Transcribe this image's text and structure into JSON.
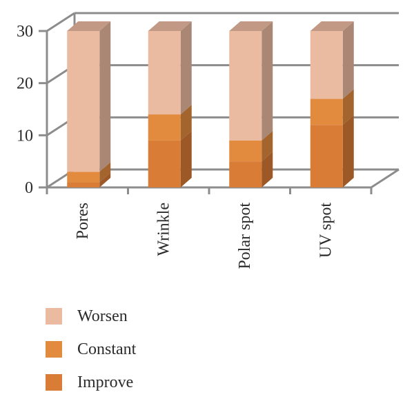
{
  "chart_data": {
    "type": "bar",
    "stacked": true,
    "three_d": true,
    "categories": [
      "Pores",
      "Wrinkle",
      "Polar spot",
      "UV spot"
    ],
    "series": [
      {
        "name": "Improve",
        "values": [
          1,
          9,
          5,
          12
        ],
        "color": "#d97c36"
      },
      {
        "name": "Constant",
        "values": [
          2,
          5,
          4,
          5
        ],
        "color": "#e28b3f"
      },
      {
        "name": "Worsen",
        "values": [
          27,
          16,
          21,
          13
        ],
        "color": "#ebbba1"
      }
    ],
    "ylim": [
      0,
      30
    ],
    "yticks": [
      "0",
      "10",
      "20",
      "30"
    ],
    "grid": true,
    "legend_position": "bottom-left"
  }
}
